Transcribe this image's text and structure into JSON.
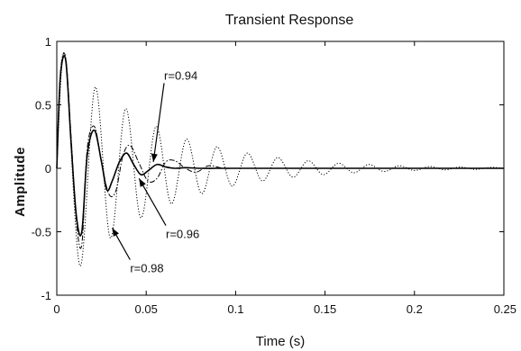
{
  "chart_data": {
    "type": "line",
    "title": "Transient Response",
    "xlabel": "Time (s)",
    "ylabel": "Amplitude",
    "xlim": [
      0,
      0.25
    ],
    "ylim": [
      -1,
      1
    ],
    "xticks": [
      0,
      0.05,
      0.1,
      0.15,
      0.2,
      0.25
    ],
    "xtick_labels": [
      "0",
      "0.05",
      "0.1",
      "0.15",
      "0.2",
      "0.25"
    ],
    "yticks": [
      -1,
      -0.5,
      0,
      0.5,
      1
    ],
    "ytick_labels": [
      "-1",
      "-0.5",
      "0",
      "0.5",
      "1"
    ],
    "grid": false,
    "series": [
      {
        "name": "r=0.94",
        "line_style": "solid",
        "color": "#000000",
        "x": [
          0,
          0.002,
          0.005,
          0.008,
          0.011,
          0.014,
          0.017,
          0.021,
          0.025,
          0.028,
          0.031,
          0.035,
          0.039,
          0.043,
          0.047,
          0.051,
          0.056,
          0.061,
          0.066,
          0.072,
          0.08,
          0.09,
          0.1,
          0.12,
          0.15,
          0.2,
          0.25
        ],
        "y": [
          0,
          0.72,
          0.85,
          0.2,
          -0.38,
          -0.5,
          0.1,
          0.3,
          0.05,
          -0.17,
          -0.1,
          0.05,
          0.12,
          0.03,
          -0.05,
          -0.02,
          0.03,
          0.01,
          0,
          0.005,
          0,
          0,
          0,
          0,
          0,
          0,
          0
        ]
      },
      {
        "name": "r=0.96",
        "line_style": "dash-dot",
        "color": "#000000",
        "x": [
          0,
          0.002,
          0.005,
          0.008,
          0.011,
          0.014,
          0.017,
          0.021,
          0.025,
          0.029,
          0.033,
          0.037,
          0.041,
          0.046,
          0.051,
          0.056,
          0.061,
          0.066,
          0.072,
          0.078,
          0.085,
          0.093,
          0.1,
          0.12,
          0.15,
          0.2,
          0.25
        ],
        "y": [
          0,
          0.75,
          0.87,
          0.25,
          -0.42,
          -0.6,
          0.15,
          0.33,
          0.05,
          -0.2,
          -0.18,
          0.1,
          0.18,
          0.04,
          -0.1,
          -0.08,
          0.05,
          0.06,
          0,
          -0.03,
          0.02,
          0,
          0,
          0,
          0,
          0,
          0
        ]
      },
      {
        "name": "r=0.98",
        "line_style": "dotted",
        "color": "#000000",
        "x": [
          0,
          0.0045,
          0.013,
          0.0215,
          0.03,
          0.0385,
          0.047,
          0.0555,
          0.064,
          0.0725,
          0.081,
          0.0895,
          0.098,
          0.1065,
          0.115,
          0.1235,
          0.132,
          0.1405,
          0.149,
          0.1575,
          0.166,
          0.1745,
          0.183,
          0.1915,
          0.2,
          0.2085,
          0.217,
          0.2255,
          0.234,
          0.2425,
          0.25
        ],
        "y": [
          0,
          0.9,
          -0.77,
          0.64,
          -0.55,
          0.47,
          -0.39,
          0.33,
          -0.28,
          0.23,
          -0.2,
          0.17,
          -0.14,
          0.12,
          -0.1,
          0.085,
          -0.07,
          0.06,
          -0.05,
          0.04,
          -0.035,
          0.03,
          -0.025,
          0.02,
          -0.017,
          0.014,
          -0.012,
          0.01,
          -0.008,
          0.007,
          0
        ]
      }
    ],
    "annotations": [
      {
        "text": "r=0.94",
        "x": 0.06,
        "y": 0.7,
        "arrow_to": [
          0.054,
          0.05
        ]
      },
      {
        "text": "r=0.96",
        "x": 0.061,
        "y": -0.55,
        "arrow_to": [
          0.046,
          -0.08
        ]
      },
      {
        "text": "r=0.98",
        "x": 0.041,
        "y": -0.82,
        "arrow_to": [
          0.031,
          -0.47
        ]
      }
    ]
  }
}
